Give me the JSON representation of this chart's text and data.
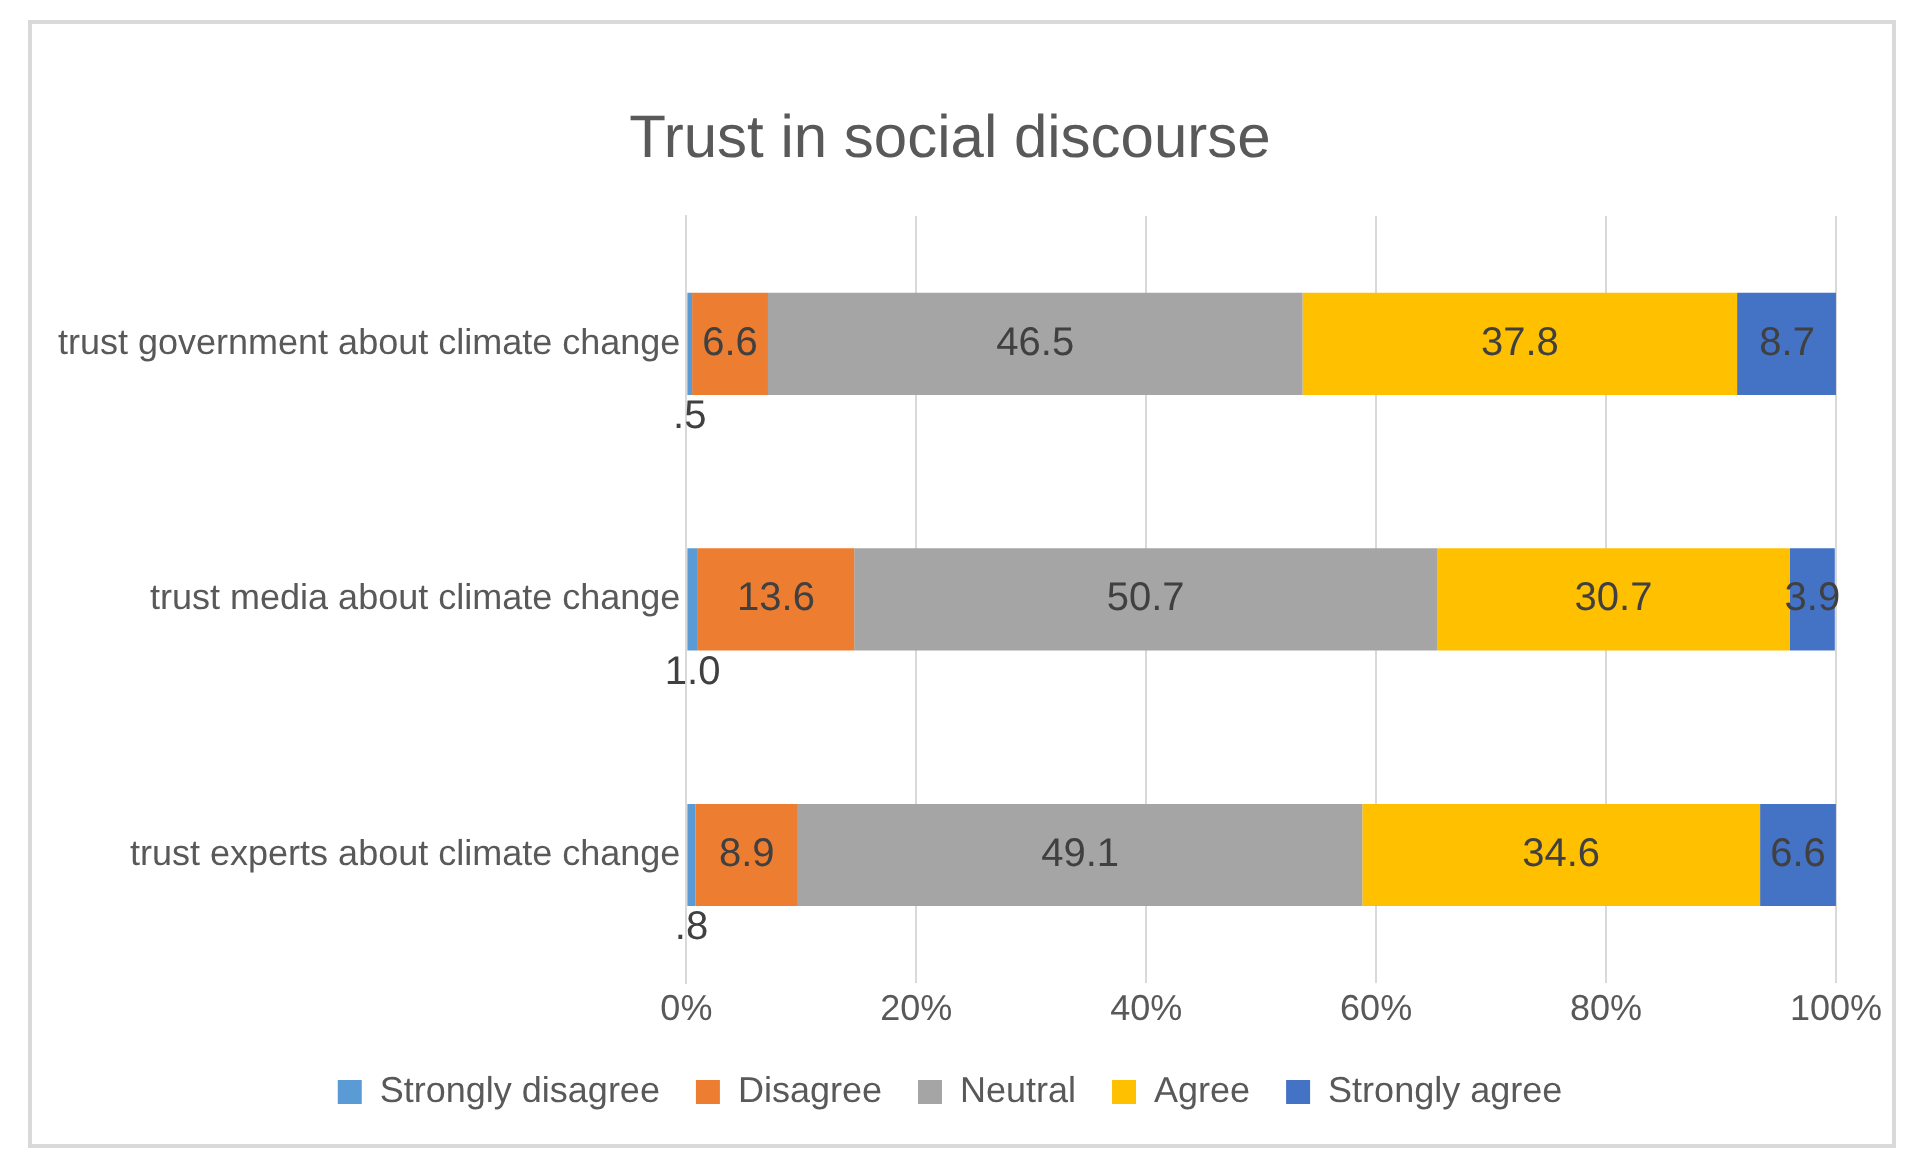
{
  "chart_data": {
    "type": "bar",
    "orientation": "horizontal",
    "stacked": true,
    "title": "Trust in social discourse",
    "categories": [
      "trust government about climate change",
      "trust media about climate change",
      "trust experts about climate change"
    ],
    "series": [
      {
        "name": "Strongly disagree",
        "color": "#5b9bd5",
        "values": [
          0.5,
          1.0,
          0.8
        ],
        "value_labels": [
          ".5",
          "1.0",
          ".8"
        ]
      },
      {
        "name": "Disagree",
        "color": "#ed7d31",
        "values": [
          6.6,
          13.6,
          8.9
        ],
        "value_labels": [
          "6.6",
          "13.6",
          "8.9"
        ]
      },
      {
        "name": "Neutral",
        "color": "#a5a5a5",
        "values": [
          46.5,
          50.7,
          49.1
        ],
        "value_labels": [
          "46.5",
          "50.7",
          "49.1"
        ]
      },
      {
        "name": "Agree",
        "color": "#ffc000",
        "values": [
          37.8,
          30.7,
          34.6
        ],
        "value_labels": [
          "37.8",
          "30.7",
          "34.6"
        ]
      },
      {
        "name": "Strongly agree",
        "color": "#4472c4",
        "values": [
          8.7,
          3.9,
          6.6
        ],
        "value_labels": [
          "8.7",
          "3.9",
          "6.6"
        ]
      }
    ],
    "xlim": [
      0,
      100
    ],
    "xticks": [
      {
        "value": 0,
        "label": "0%"
      },
      {
        "value": 20,
        "label": "20%"
      },
      {
        "value": 40,
        "label": "40%"
      },
      {
        "value": 60,
        "label": "60%"
      },
      {
        "value": 80,
        "label": "80%"
      },
      {
        "value": 100,
        "label": "100%"
      }
    ],
    "grid": "x",
    "legend": "bottom"
  }
}
